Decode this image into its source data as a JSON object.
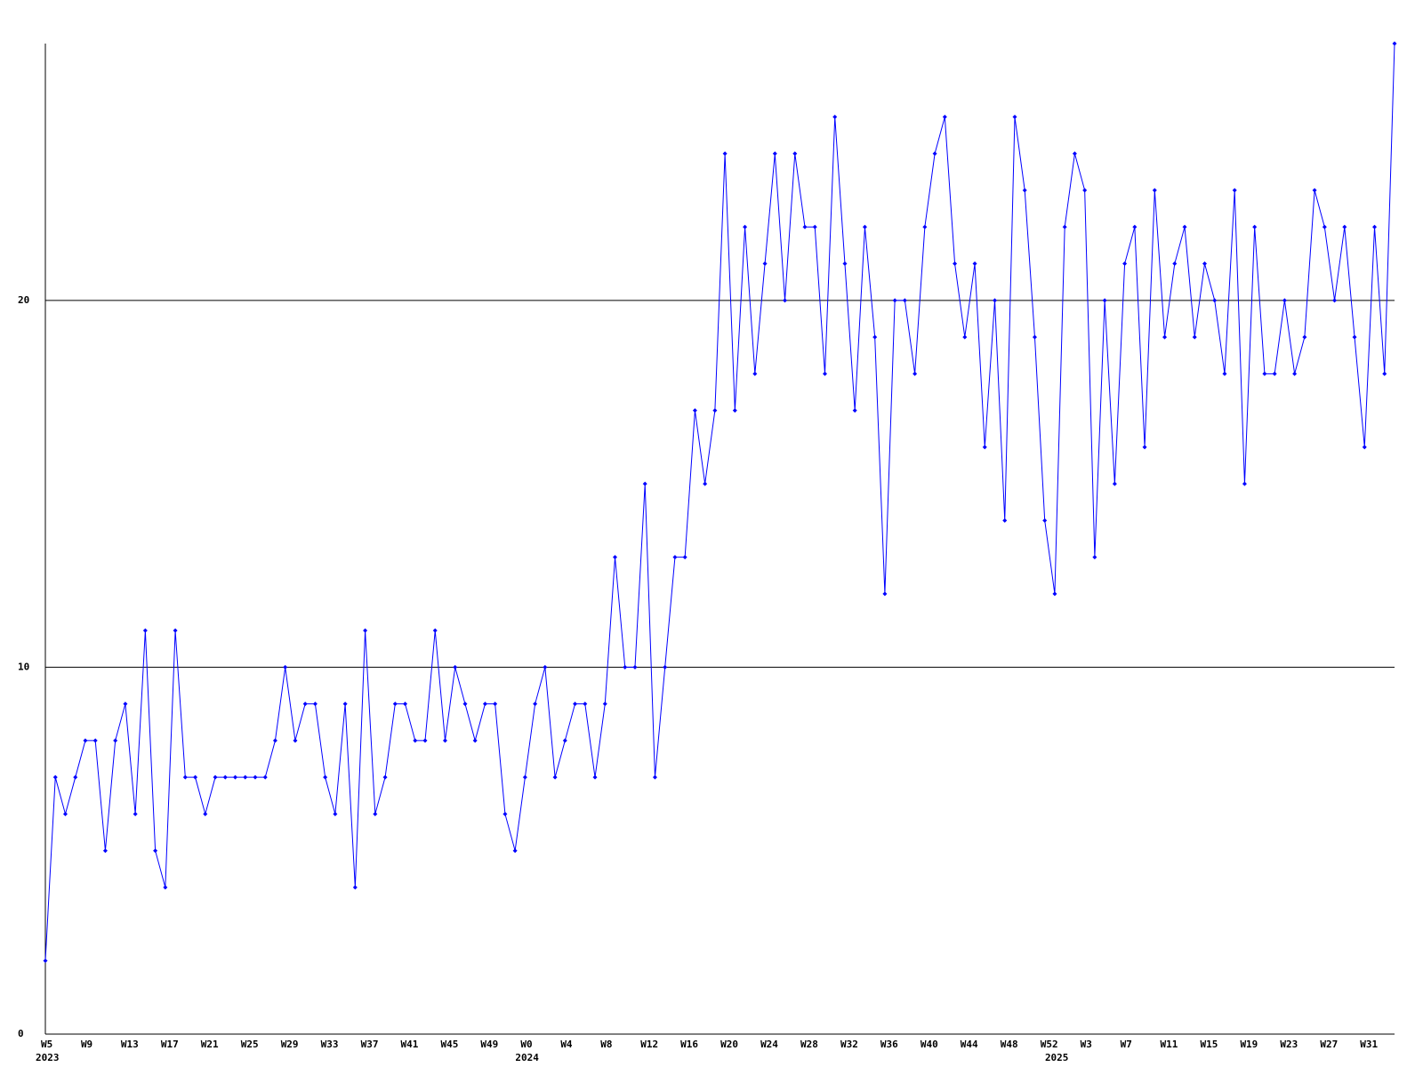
{
  "chart_data": {
    "type": "line",
    "categories": [
      "W5",
      null,
      null,
      null,
      "W9",
      null,
      null,
      null,
      "W13",
      null,
      null,
      null,
      "W17",
      null,
      null,
      null,
      "W21",
      null,
      null,
      null,
      "W25",
      null,
      null,
      null,
      "W29",
      null,
      null,
      null,
      "W33",
      null,
      null,
      null,
      "W37",
      null,
      null,
      null,
      "W41",
      null,
      null,
      null,
      "W45",
      null,
      null,
      null,
      "W49",
      null,
      null,
      null,
      "W0",
      null,
      null,
      null,
      "W4",
      null,
      null,
      null,
      "W8",
      null,
      null,
      null,
      "W12",
      null,
      null,
      null,
      "W16",
      null,
      null,
      null,
      "W20",
      null,
      null,
      null,
      "W24",
      null,
      null,
      null,
      "W28",
      null,
      null,
      null,
      "W32",
      null,
      null,
      null,
      "W36",
      null,
      null,
      null,
      "W40",
      null,
      null,
      null,
      "W44",
      null,
      null,
      null,
      "W48",
      null,
      null,
      null,
      "W52",
      null,
      null,
      null,
      "W3",
      null,
      null,
      null,
      "W7",
      null,
      null,
      null,
      "W11",
      null,
      null,
      null,
      "W15",
      null,
      null,
      null,
      "W19",
      null,
      null,
      null,
      "W23",
      null,
      null,
      null,
      "W27",
      null,
      null,
      null,
      "W31",
      null,
      null,
      null
    ],
    "year_labels": [
      "2023",
      null,
      null,
      null,
      null,
      null,
      null,
      null,
      null,
      null,
      null,
      null,
      null,
      null,
      null,
      null,
      null,
      null,
      null,
      null,
      null,
      null,
      null,
      null,
      null,
      null,
      null,
      null,
      null,
      null,
      null,
      null,
      null,
      null,
      null,
      null,
      null,
      null,
      null,
      null,
      null,
      null,
      null,
      null,
      null,
      null,
      null,
      null,
      "2024",
      null,
      null,
      null,
      null,
      null,
      null,
      null,
      null,
      null,
      null,
      null,
      null,
      null,
      null,
      null,
      null,
      null,
      null,
      null,
      null,
      null,
      null,
      null,
      null,
      null,
      null,
      null,
      null,
      null,
      null,
      null,
      null,
      null,
      null,
      null,
      null,
      null,
      null,
      null,
      null,
      null,
      null,
      null,
      null,
      null,
      null,
      null,
      null,
      null,
      null,
      null,
      null,
      "2025",
      null,
      null,
      null,
      null,
      null,
      null,
      null,
      null,
      null,
      null,
      null,
      null,
      null,
      null,
      null,
      null,
      null,
      null,
      null,
      null,
      null,
      null,
      null,
      null,
      null,
      null,
      null,
      null,
      null,
      null,
      null,
      null,
      null,
      null
    ],
    "series": [
      {
        "color": "#0000ff",
        "values": [
          2,
          7,
          6,
          7,
          8,
          8,
          5,
          8,
          9,
          6,
          11,
          5,
          4,
          11,
          7,
          7,
          6,
          7,
          7,
          7,
          7,
          7,
          7,
          8,
          10,
          8,
          9,
          9,
          7,
          6,
          9,
          4,
          11,
          6,
          7,
          9,
          9,
          8,
          8,
          11,
          8,
          10,
          9,
          8,
          9,
          9,
          6,
          5,
          7,
          9,
          10,
          7,
          8,
          9,
          9,
          7,
          9,
          13,
          10,
          10,
          15,
          7,
          10,
          13,
          13,
          17,
          15,
          17,
          24,
          17,
          22,
          18,
          21,
          24,
          20,
          24,
          22,
          22,
          18,
          25,
          21,
          17,
          22,
          19,
          12,
          20,
          20,
          18,
          22,
          24,
          25,
          21,
          19,
          21,
          16,
          20,
          14,
          25,
          23,
          19,
          14,
          12,
          22,
          24,
          23,
          13,
          20,
          15,
          21,
          22,
          16,
          23,
          19,
          21,
          22,
          19,
          21,
          20,
          18,
          23,
          15,
          22,
          18,
          18,
          20,
          18,
          19,
          23,
          22,
          20,
          22,
          19,
          16,
          22,
          18,
          27
        ]
      }
    ],
    "ylim": [
      0,
      27
    ],
    "yticks": [
      0,
      10,
      20
    ],
    "grid": true
  }
}
